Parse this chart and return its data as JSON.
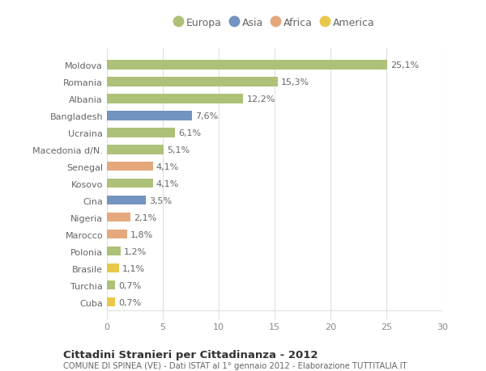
{
  "countries": [
    "Moldova",
    "Romania",
    "Albania",
    "Bangladesh",
    "Ucraina",
    "Macedonia d/N.",
    "Senegal",
    "Kosovo",
    "Cina",
    "Nigeria",
    "Marocco",
    "Polonia",
    "Brasile",
    "Turchia",
    "Cuba"
  ],
  "values": [
    25.1,
    15.3,
    12.2,
    7.6,
    6.1,
    5.1,
    4.1,
    4.1,
    3.5,
    2.1,
    1.8,
    1.2,
    1.1,
    0.7,
    0.7
  ],
  "labels": [
    "25,1%",
    "15,3%",
    "12,2%",
    "7,6%",
    "6,1%",
    "5,1%",
    "4,1%",
    "4,1%",
    "3,5%",
    "2,1%",
    "1,8%",
    "1,2%",
    "1,1%",
    "0,7%",
    "0,7%"
  ],
  "continents": [
    "Europa",
    "Europa",
    "Europa",
    "Asia",
    "Europa",
    "Europa",
    "Africa",
    "Europa",
    "Asia",
    "Africa",
    "Africa",
    "Europa",
    "America",
    "Europa",
    "America"
  ],
  "colors": {
    "Europa": "#adc178",
    "Asia": "#7393c0",
    "Africa": "#e5a87c",
    "America": "#e8c84a"
  },
  "legend_order": [
    "Europa",
    "Asia",
    "Africa",
    "America"
  ],
  "title_main": "Cittadini Stranieri per Cittadinanza - 2012",
  "title_sub": "COMUNE DI SPINEA (VE) - Dati ISTAT al 1° gennaio 2012 - Elaborazione TUTTITALIA.IT",
  "xlim": [
    0,
    30
  ],
  "xticks": [
    0,
    5,
    10,
    15,
    20,
    25,
    30
  ],
  "bg_color": "#ffffff",
  "grid_color": "#e0e0e0",
  "bar_height": 0.55,
  "label_fontsize": 8,
  "tick_fontsize": 8,
  "legend_fontsize": 9
}
